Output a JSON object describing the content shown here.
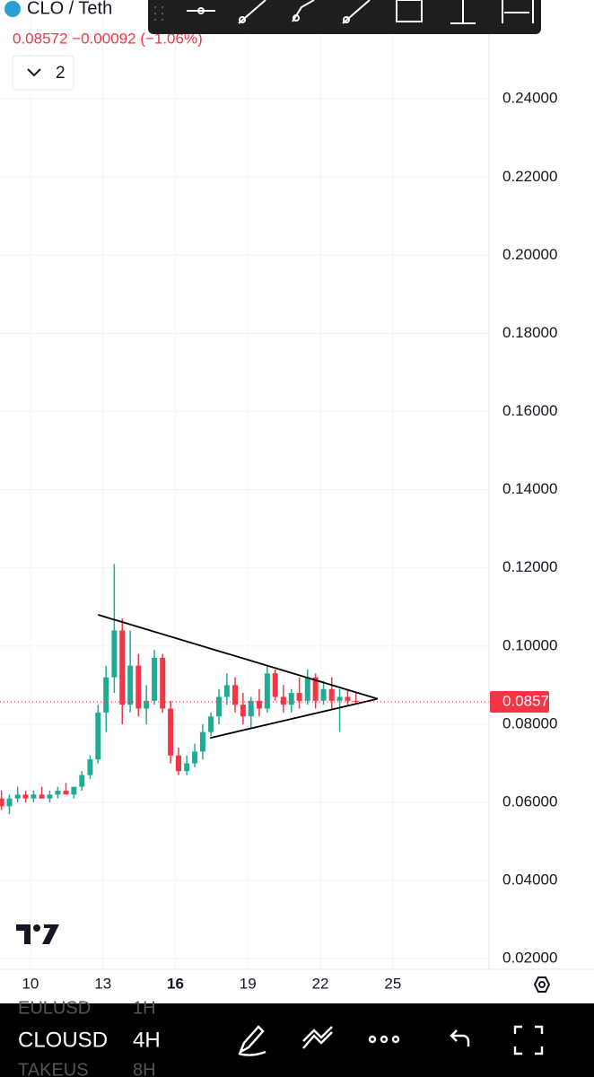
{
  "header": {
    "symbol": "CLO / Teth",
    "quote": "0.08572 −0.00092 (−1.06%)",
    "layout_count": "2"
  },
  "bottom_bar": {
    "rows": [
      {
        "symbol": "EULUSD",
        "interval": "1H"
      },
      {
        "symbol": "CLOUSD",
        "interval": "4H"
      },
      {
        "symbol": "TAKEUS",
        "interval": "8H"
      }
    ]
  },
  "chart_data": {
    "type": "candlestick",
    "x": [
      8.8,
      9.13,
      9.47,
      9.8,
      10.13,
      10.47,
      10.8,
      11.13,
      11.47,
      11.8,
      12.13,
      12.47,
      12.8,
      13.13,
      13.47,
      13.8,
      14.13,
      14.47,
      14.8,
      15.13,
      15.47,
      15.8,
      16.13,
      16.47,
      16.8,
      17.13,
      17.47,
      17.8,
      18.13,
      18.47,
      18.8,
      19.13,
      19.47,
      19.8,
      20.13,
      20.47,
      20.8,
      21.13,
      21.47,
      21.8,
      22.13,
      22.47,
      22.8,
      23.13,
      23.47
    ],
    "open": [
      0.061,
      0.059,
      0.061,
      0.062,
      0.061,
      0.062,
      0.061,
      0.062,
      0.063,
      0.062,
      0.064,
      0.067,
      0.071,
      0.083,
      0.092,
      0.104,
      0.085,
      0.095,
      0.084,
      0.086,
      0.097,
      0.084,
      0.072,
      0.068,
      0.07,
      0.073,
      0.078,
      0.082,
      0.087,
      0.09,
      0.085,
      0.082,
      0.086,
      0.084,
      0.093,
      0.087,
      0.085,
      0.088,
      0.086,
      0.092,
      0.086,
      0.089,
      0.086,
      0.087,
      0.086
    ],
    "high": [
      0.063,
      0.062,
      0.064,
      0.063,
      0.063,
      0.064,
      0.063,
      0.064,
      0.065,
      0.064,
      0.068,
      0.072,
      0.085,
      0.095,
      0.121,
      0.107,
      0.104,
      0.098,
      0.09,
      0.099,
      0.098,
      0.086,
      0.074,
      0.072,
      0.075,
      0.08,
      0.083,
      0.089,
      0.093,
      0.092,
      0.088,
      0.087,
      0.089,
      0.095,
      0.094,
      0.09,
      0.089,
      0.092,
      0.094,
      0.093,
      0.091,
      0.092,
      0.089,
      0.089,
      0.088
    ],
    "low": [
      0.058,
      0.057,
      0.06,
      0.06,
      0.06,
      0.061,
      0.06,
      0.061,
      0.062,
      0.061,
      0.063,
      0.066,
      0.07,
      0.078,
      0.088,
      0.08,
      0.083,
      0.082,
      0.08,
      0.085,
      0.083,
      0.07,
      0.067,
      0.067,
      0.069,
      0.071,
      0.077,
      0.08,
      0.085,
      0.083,
      0.08,
      0.079,
      0.082,
      0.083,
      0.086,
      0.083,
      0.083,
      0.084,
      0.085,
      0.084,
      0.085,
      0.084,
      0.078,
      0.085,
      0.085
    ],
    "close": [
      0.059,
      0.061,
      0.062,
      0.061,
      0.062,
      0.061,
      0.062,
      0.063,
      0.062,
      0.064,
      0.067,
      0.071,
      0.083,
      0.092,
      0.104,
      0.085,
      0.095,
      0.084,
      0.086,
      0.097,
      0.084,
      0.072,
      0.068,
      0.07,
      0.073,
      0.078,
      0.082,
      0.087,
      0.09,
      0.085,
      0.082,
      0.086,
      0.084,
      0.093,
      0.087,
      0.085,
      0.088,
      0.086,
      0.092,
      0.086,
      0.089,
      0.086,
      0.087,
      0.086,
      0.08572
    ],
    "up_color": "#22ab94",
    "down_color": "#f23645",
    "xlim": [
      8.74,
      28.98
    ],
    "xticks": [
      10,
      13,
      {
        "value": 16,
        "label": "16"
      },
      19,
      22,
      25
    ],
    "ylim": [
      0.0173,
      0.2653
    ],
    "yticks": [
      {
        "value": 0.02,
        "label": "0.02000"
      },
      {
        "value": 0.04,
        "label": "0.04000"
      },
      {
        "value": 0.06,
        "label": "0.06000"
      },
      {
        "value": 0.08,
        "label": "0.08000"
      },
      {
        "value": 0.1,
        "label": "0.10000"
      },
      {
        "value": 0.12,
        "label": "0.12000"
      },
      {
        "value": 0.14,
        "label": "0.14000"
      },
      {
        "value": 0.16,
        "label": "0.16000"
      },
      {
        "value": 0.18,
        "label": "0.18000"
      },
      {
        "value": 0.2,
        "label": "0.20000"
      },
      {
        "value": 0.22,
        "label": "0.22000"
      },
      {
        "value": 0.24,
        "label": "0.24000"
      }
    ],
    "last_price": 0.08572,
    "grid": true,
    "trendlines": [
      {
        "x": [
          12.8,
          24.37
        ],
        "y": [
          0.108,
          0.0865
        ]
      },
      {
        "x": [
          17.44,
          24.37
        ],
        "y": [
          0.0765,
          0.0865
        ]
      }
    ]
  }
}
